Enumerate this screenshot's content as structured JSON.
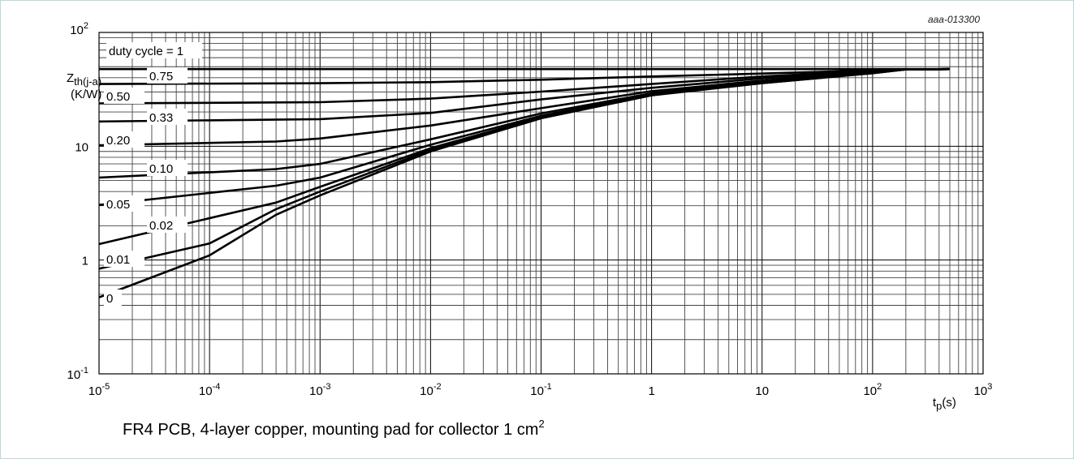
{
  "document_id": "aaa-013300",
  "chart_data": {
    "type": "line",
    "x_scale": "log",
    "y_scale": "log",
    "xlim": [
      1e-05,
      1000
    ],
    "ylim": [
      0.1,
      100
    ],
    "ylabel": {
      "main": "Z",
      "sub": "th(j-a)",
      "unit": "(K/W)"
    },
    "xlabel": {
      "main": "t",
      "sub": "p",
      "unit": "(s)"
    },
    "x_ticks": [
      {
        "base": "10",
        "exp": "-5"
      },
      {
        "base": "10",
        "exp": "-4"
      },
      {
        "base": "10",
        "exp": "-3"
      },
      {
        "base": "10",
        "exp": "-2"
      },
      {
        "base": "10",
        "exp": "-1"
      },
      {
        "base": "1",
        "exp": ""
      },
      {
        "base": "10",
        "exp": ""
      },
      {
        "base": "10",
        "exp": "2"
      },
      {
        "base": "10",
        "exp": "3"
      }
    ],
    "y_ticks": [
      {
        "base": "10",
        "exp": "-1"
      },
      {
        "base": "1",
        "exp": ""
      },
      {
        "base": "10",
        "exp": ""
      },
      {
        "base": "10",
        "exp": "2"
      }
    ],
    "grid": true,
    "series": [
      {
        "name": "duty cycle = 1",
        "points": [
          [
            1e-05,
            47.6
          ],
          [
            500,
            47.6
          ]
        ]
      },
      {
        "name": "0.75",
        "points": [
          [
            1e-05,
            35.2
          ],
          [
            0.001,
            35.8
          ],
          [
            0.01,
            36.6
          ],
          [
            0.1,
            38.4
          ],
          [
            1,
            41
          ],
          [
            10,
            43.5
          ],
          [
            100,
            46.5
          ],
          [
            200,
            47.3
          ],
          [
            500,
            47.6
          ]
        ]
      },
      {
        "name": "0.50",
        "points": [
          [
            1e-05,
            23.8
          ],
          [
            0.001,
            24.4
          ],
          [
            0.01,
            26.2
          ],
          [
            0.1,
            30.2
          ],
          [
            1,
            35.2
          ],
          [
            10,
            41
          ],
          [
            100,
            46
          ],
          [
            200,
            47.3
          ],
          [
            500,
            47.6
          ]
        ]
      },
      {
        "name": "0.33",
        "points": [
          [
            1e-05,
            16.5
          ],
          [
            0.001,
            17.3
          ],
          [
            0.01,
            19.6
          ],
          [
            0.1,
            25.8
          ],
          [
            1,
            32.6
          ],
          [
            10,
            39.5
          ],
          [
            100,
            45.5
          ],
          [
            200,
            47.3
          ],
          [
            500,
            47.6
          ]
        ]
      },
      {
        "name": "0.20",
        "points": [
          [
            1e-05,
            10.2
          ],
          [
            0.0004,
            11
          ],
          [
            0.001,
            11.7
          ],
          [
            0.01,
            15.2
          ],
          [
            0.1,
            21.6
          ],
          [
            1,
            30.5
          ],
          [
            10,
            37.8
          ],
          [
            100,
            45
          ],
          [
            200,
            47.3
          ],
          [
            500,
            47.6
          ]
        ]
      },
      {
        "name": "0.10",
        "points": [
          [
            1e-05,
            5.3
          ],
          [
            0.0004,
            6.3
          ],
          [
            0.001,
            7
          ],
          [
            0.01,
            11.5
          ],
          [
            0.1,
            19.4
          ],
          [
            1,
            29.2
          ],
          [
            10,
            36.8
          ],
          [
            100,
            44.5
          ],
          [
            200,
            47.3
          ],
          [
            500,
            47.6
          ]
        ]
      },
      {
        "name": "0.05",
        "points": [
          [
            1e-05,
            3.05
          ],
          [
            0.0004,
            4.5
          ],
          [
            0.001,
            5.3
          ],
          [
            0.01,
            10.3
          ],
          [
            0.1,
            18.5
          ],
          [
            1,
            28.7
          ],
          [
            10,
            36.3
          ],
          [
            100,
            44.2
          ],
          [
            200,
            47.3
          ],
          [
            500,
            47.6
          ]
        ]
      },
      {
        "name": "0.02",
        "points": [
          [
            1e-05,
            1.38
          ],
          [
            0.0004,
            3.2
          ],
          [
            0.001,
            4.4
          ],
          [
            0.01,
            9.6
          ],
          [
            0.1,
            18
          ],
          [
            1,
            28.4
          ],
          [
            10,
            36
          ],
          [
            100,
            44
          ],
          [
            200,
            47.3
          ],
          [
            500,
            47.6
          ]
        ]
      },
      {
        "name": "0.01",
        "points": [
          [
            1e-05,
            0.84
          ],
          [
            0.0001,
            1.4
          ],
          [
            0.0004,
            2.8
          ],
          [
            0.001,
            4
          ],
          [
            0.01,
            9.3
          ],
          [
            0.1,
            17.8
          ],
          [
            1,
            28.2
          ],
          [
            10,
            35.9
          ],
          [
            100,
            43.9
          ],
          [
            200,
            47.3
          ],
          [
            500,
            47.6
          ]
        ]
      },
      {
        "name": "0",
        "points": [
          [
            1e-05,
            0.47
          ],
          [
            0.0001,
            1.1
          ],
          [
            0.0004,
            2.5
          ],
          [
            0.001,
            3.7
          ],
          [
            0.01,
            9
          ],
          [
            0.1,
            17.6
          ],
          [
            1,
            28
          ],
          [
            10,
            35.8
          ],
          [
            100,
            43.8
          ],
          [
            200,
            47.3
          ],
          [
            500,
            47.6
          ]
        ]
      }
    ]
  },
  "caption": {
    "text": "FR4 PCB, 4-layer copper, mounting pad for collector 1 cm",
    "superscript": "2"
  }
}
